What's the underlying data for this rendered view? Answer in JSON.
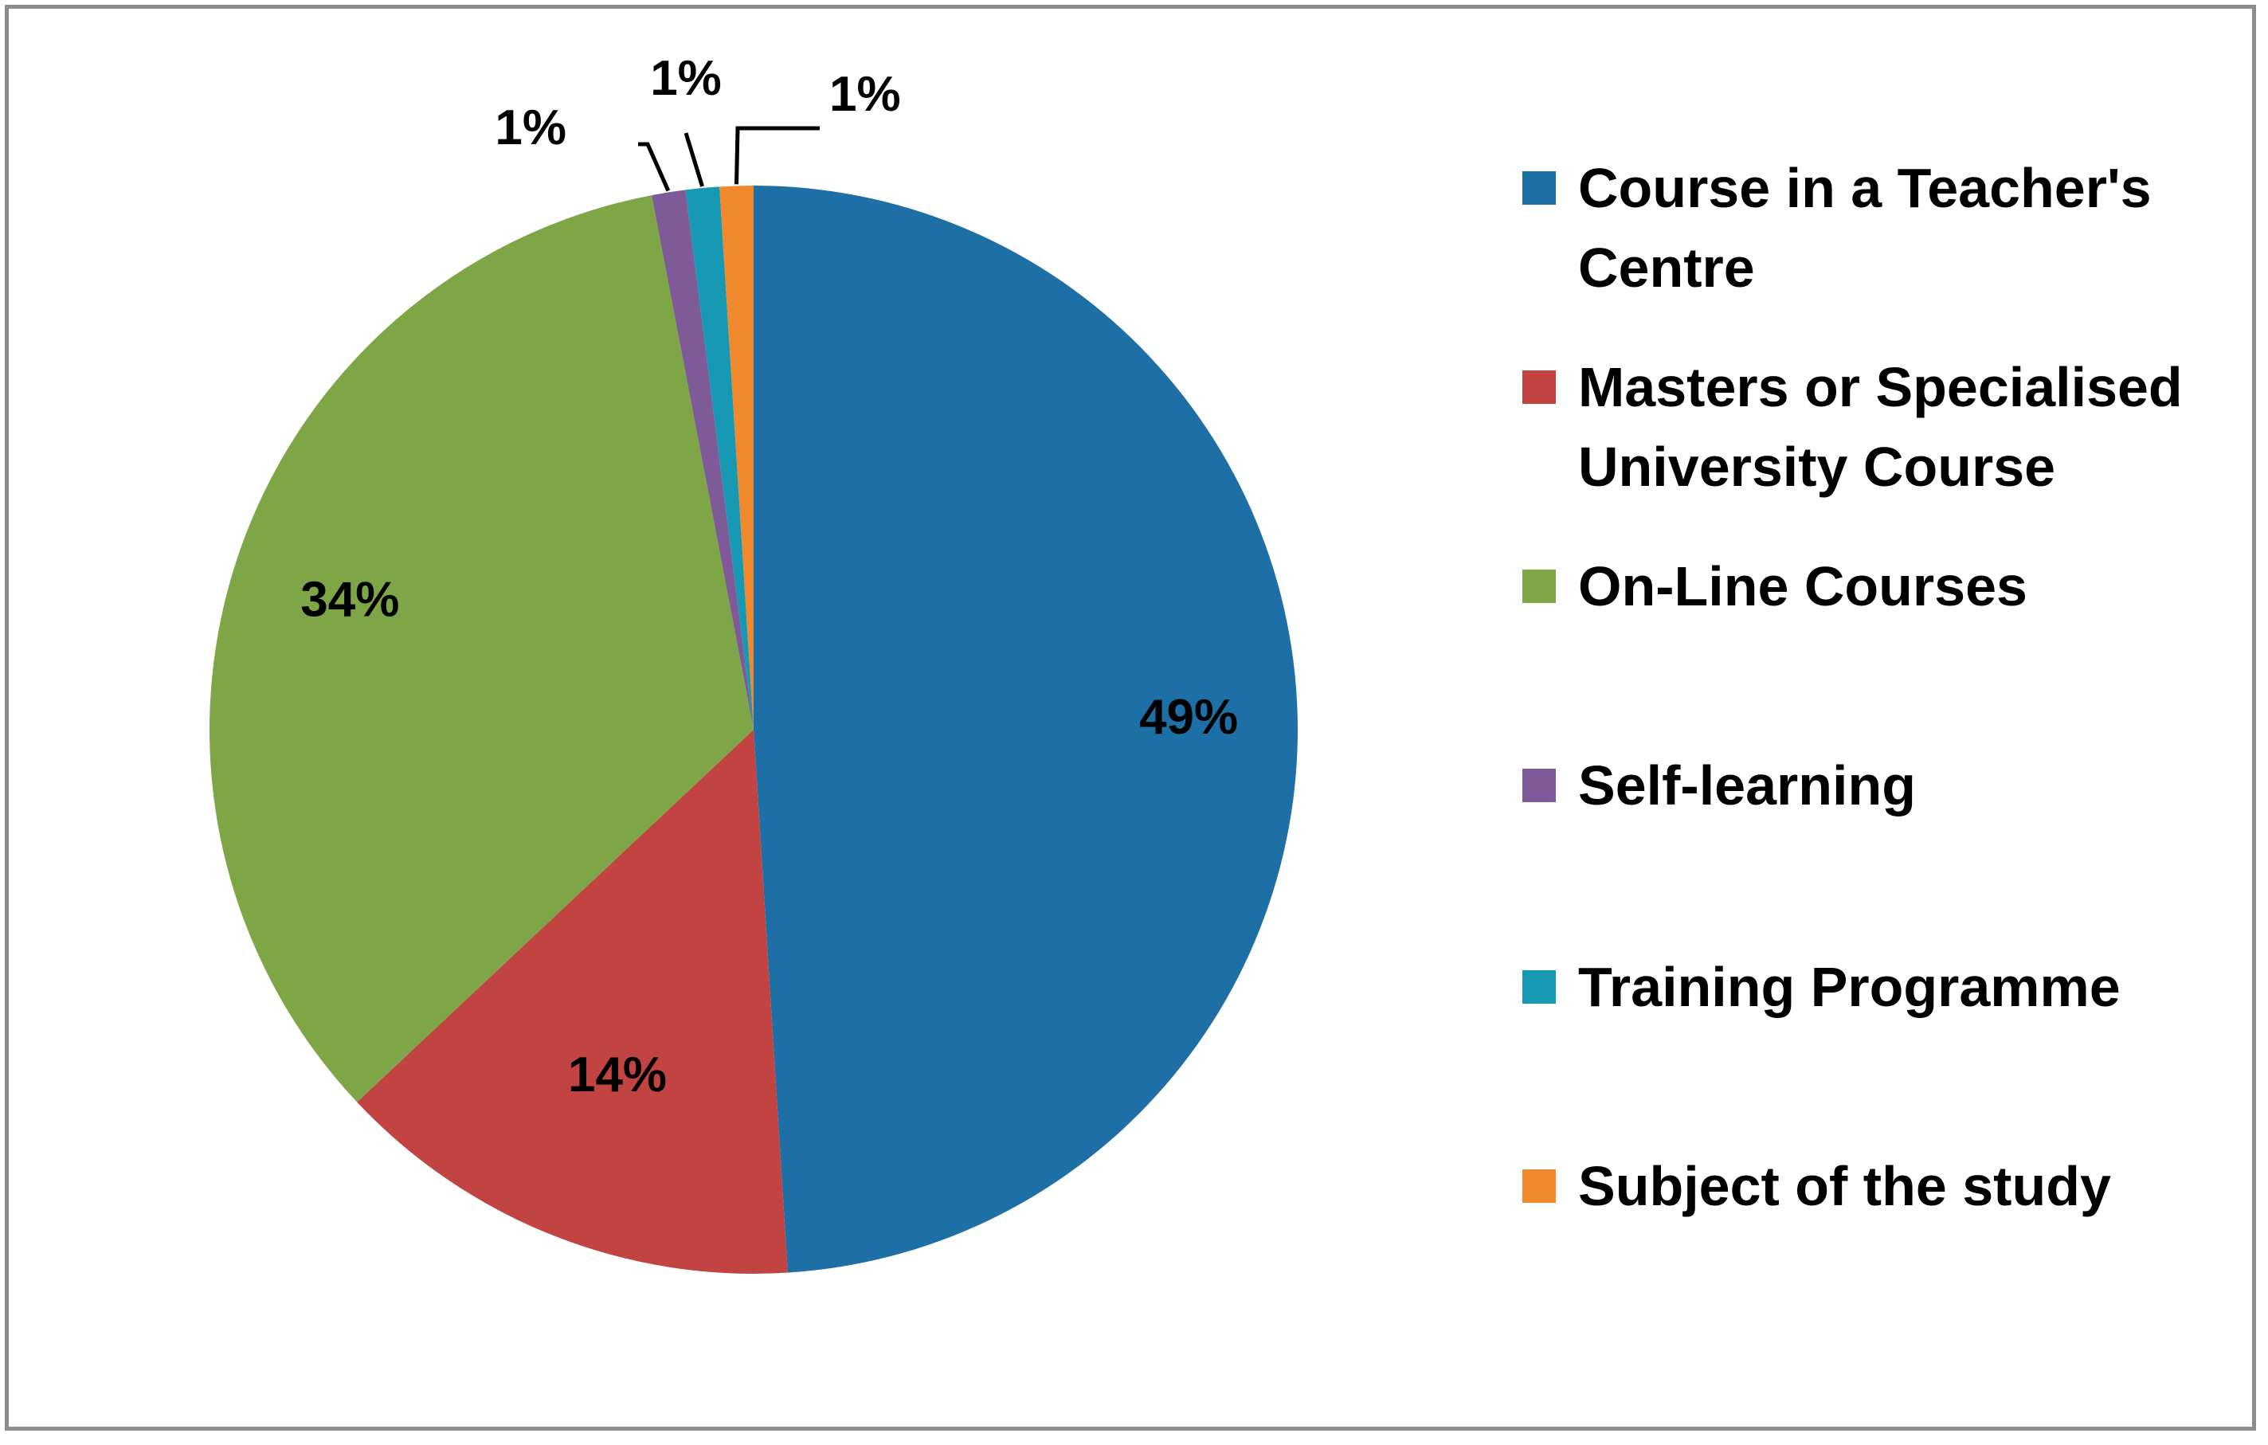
{
  "chart_data": {
    "type": "pie",
    "legend_position": "right",
    "slices": [
      {
        "label": "Course in a Teacher's Centre",
        "value": 49,
        "display": "49%",
        "color": "#1f6fa7"
      },
      {
        "label": "Masters or Specialised University Course",
        "value": 14,
        "display": "14%",
        "color": "#c24442"
      },
      {
        "label": "On-Line Courses",
        "value": 34,
        "display": "34%",
        "color": "#7ea646"
      },
      {
        "label": "Self-learning",
        "value": 1,
        "display": "1%",
        "color": "#7e5a99"
      },
      {
        "label": "Training Programme",
        "value": 1,
        "display": "1%",
        "color": "#1798b3"
      },
      {
        "label": "Subject of the study",
        "value": 1,
        "display": "1%",
        "color": "#f0882e"
      }
    ]
  }
}
